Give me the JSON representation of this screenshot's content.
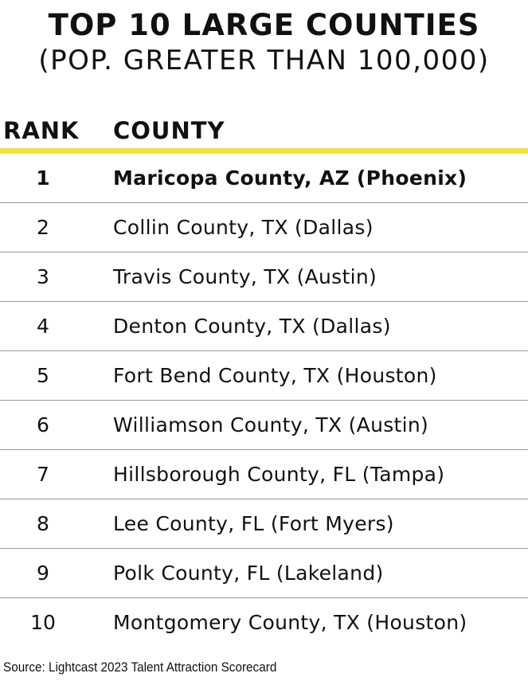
{
  "title": {
    "line1": "TOP 10 LARGE COUNTIES",
    "line2": "(POP. GREATER THAN 100,000)"
  },
  "table": {
    "headers": {
      "rank": "RANK",
      "county": "COUNTY"
    },
    "rows": [
      {
        "rank": "1",
        "county": "Maricopa County, AZ (Phoenix)"
      },
      {
        "rank": "2",
        "county": "Collin County, TX (Dallas)"
      },
      {
        "rank": "3",
        "county": "Travis County, TX (Austin)"
      },
      {
        "rank": "4",
        "county": "Denton County, TX (Dallas)"
      },
      {
        "rank": "5",
        "county": "Fort Bend County, TX (Houston)"
      },
      {
        "rank": "6",
        "county": "Williamson County, TX (Austin)"
      },
      {
        "rank": "7",
        "county": "Hillsborough County, FL (Tampa)"
      },
      {
        "rank": "8",
        "county": "Lee County, FL (Fort Myers)"
      },
      {
        "rank": "9",
        "county": "Polk County, FL (Lakeland)"
      },
      {
        "rank": "10",
        "county": "Montgomery County, TX (Houston)"
      }
    ]
  },
  "source": "Source: Lightcast 2023 Talent Attraction Scorecard",
  "colors": {
    "accent": "#f2e13a",
    "divider": "#9a9a9a",
    "text": "#111111"
  }
}
